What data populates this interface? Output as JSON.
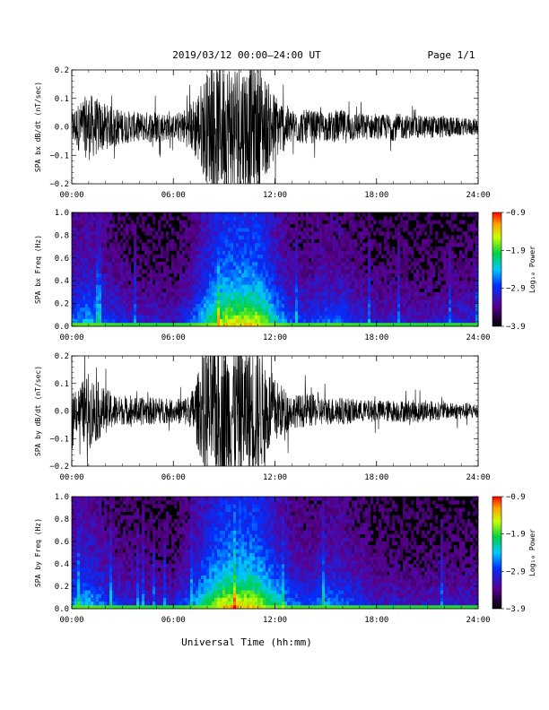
{
  "header": {
    "title": "2019/03/12  00:00–24:00 UT",
    "page": "Page 1/1"
  },
  "x_ticks": [
    "00:00",
    "06:00",
    "12:00",
    "18:00",
    "24:00"
  ],
  "xlabel": "Universal Time (hh:mm)",
  "colors": {
    "ink": "#000000",
    "background": "#000000"
  },
  "chart_data": [
    {
      "type": "line",
      "ylabel": "SPA bx dB/dt (nT/sec)",
      "xlim": [
        0,
        24
      ],
      "ylim": [
        -0.2,
        0.2
      ],
      "y_ticks": [
        "0.2",
        "0.1",
        "0.0",
        "−0.1",
        "−0.2"
      ],
      "series": [
        {
          "x": [
            0,
            1,
            2,
            3,
            4,
            5,
            6,
            7,
            8,
            9,
            10,
            11,
            12,
            13,
            14,
            15,
            16,
            17,
            18,
            19,
            20,
            21,
            22,
            23,
            24
          ],
          "amplitude": [
            0.06,
            0.12,
            0.08,
            0.06,
            0.05,
            0.06,
            0.04,
            0.08,
            0.2,
            0.24,
            0.24,
            0.22,
            0.12,
            0.06,
            0.06,
            0.05,
            0.06,
            0.05,
            0.04,
            0.05,
            0.04,
            0.04,
            0.04,
            0.03,
            0.03
          ]
        }
      ]
    },
    {
      "type": "heatmap",
      "ylabel": "SPA bx Freq (Hz)",
      "xlim": [
        0,
        24
      ],
      "ylim": [
        0,
        1.0
      ],
      "y_ticks": [
        "1.0",
        "0.8",
        "0.6",
        "0.4",
        "0.2",
        "0.0"
      ],
      "colorbar": {
        "label": "Log₁₀ Power",
        "ticks": [
          "−0.9",
          "−1.9",
          "−2.9",
          "−3.9"
        ],
        "range": [
          -3.9,
          -0.9
        ]
      },
      "x": [
        0,
        1,
        2,
        3,
        4,
        5,
        6,
        7,
        8,
        9,
        10,
        11,
        12,
        13,
        14,
        15,
        16,
        17,
        18,
        19,
        20,
        21,
        22,
        23,
        24
      ],
      "intensity": [
        0.45,
        0.55,
        0.42,
        0.35,
        0.3,
        0.3,
        0.28,
        0.4,
        0.65,
        0.85,
        0.88,
        0.85,
        0.62,
        0.4,
        0.38,
        0.45,
        0.42,
        0.35,
        0.3,
        0.3,
        0.28,
        0.28,
        0.3,
        0.32,
        0.32
      ]
    },
    {
      "type": "line",
      "ylabel": "SPA by dB/dt (nT/sec)",
      "xlim": [
        0,
        24
      ],
      "ylim": [
        -0.2,
        0.2
      ],
      "y_ticks": [
        "0.2",
        "0.1",
        "0.0",
        "−0.1",
        "−0.2"
      ],
      "series": [
        {
          "x": [
            0,
            1,
            2,
            3,
            4,
            5,
            6,
            7,
            8,
            9,
            10,
            11,
            12,
            13,
            14,
            15,
            16,
            17,
            18,
            19,
            20,
            21,
            22,
            23,
            24
          ],
          "amplitude": [
            0.06,
            0.14,
            0.08,
            0.05,
            0.05,
            0.05,
            0.04,
            0.06,
            0.24,
            0.26,
            0.26,
            0.24,
            0.12,
            0.06,
            0.06,
            0.05,
            0.05,
            0.04,
            0.04,
            0.04,
            0.04,
            0.04,
            0.03,
            0.03,
            0.03
          ]
        }
      ]
    },
    {
      "type": "heatmap",
      "ylabel": "SPA by Freq (Hz)",
      "xlim": [
        0,
        24
      ],
      "ylim": [
        0,
        1.0
      ],
      "y_ticks": [
        "1.0",
        "0.8",
        "0.6",
        "0.4",
        "0.2",
        "0.0"
      ],
      "colorbar": {
        "label": "Log₁₀ Power",
        "ticks": [
          "−0.9",
          "−1.9",
          "−2.9",
          "−3.9"
        ],
        "range": [
          -3.9,
          -0.9
        ]
      },
      "x": [
        0,
        1,
        2,
        3,
        4,
        5,
        6,
        7,
        8,
        9,
        10,
        11,
        12,
        13,
        14,
        15,
        16,
        17,
        18,
        19,
        20,
        21,
        22,
        23,
        24
      ],
      "intensity": [
        0.5,
        0.55,
        0.42,
        0.35,
        0.32,
        0.3,
        0.3,
        0.45,
        0.7,
        0.88,
        0.9,
        0.85,
        0.65,
        0.45,
        0.4,
        0.48,
        0.45,
        0.38,
        0.3,
        0.3,
        0.28,
        0.28,
        0.3,
        0.3,
        0.3
      ]
    }
  ]
}
